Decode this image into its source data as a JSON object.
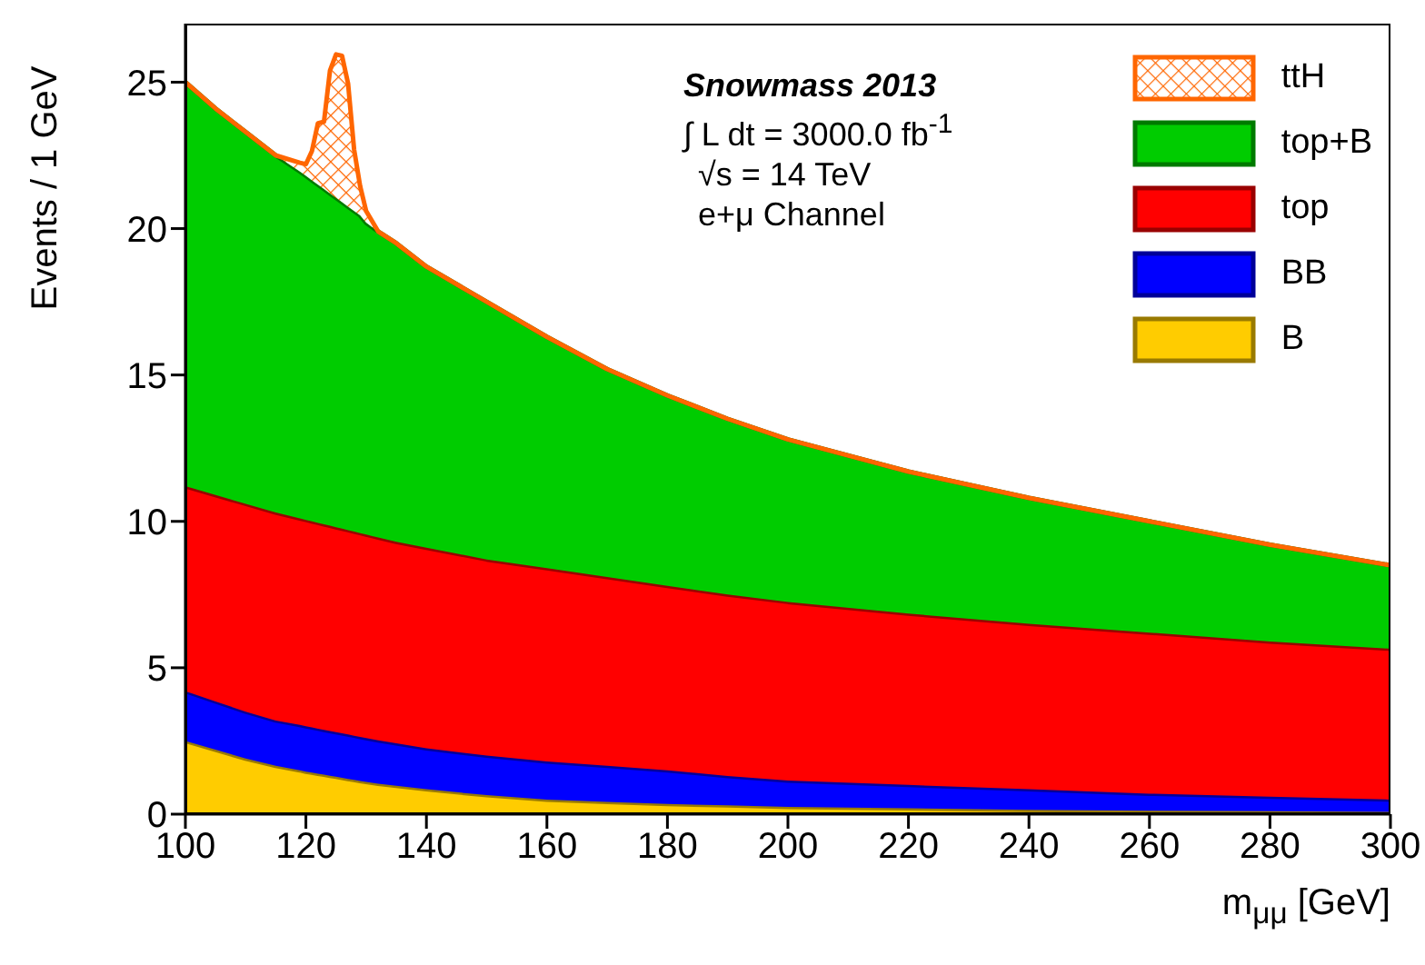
{
  "chart_data": {
    "type": "area",
    "stacked": true,
    "xlabel": "m$_{μμ}$ [GeV]",
    "ylabel": "Events / 1 GeV",
    "annotations": [
      "Snowmass 2013",
      "∫ L dt = 3000.0 fb$^{-1}$",
      "√s = 14 TeV",
      "e+μ Channel"
    ],
    "x": [
      100,
      105,
      110,
      115,
      119,
      120,
      121,
      122,
      123,
      124,
      125,
      126,
      127,
      128,
      129,
      130,
      131,
      132,
      135,
      140,
      150,
      160,
      170,
      180,
      190,
      200,
      220,
      240,
      260,
      280,
      300
    ],
    "series": [
      {
        "name": "B",
        "color": "#ffcc00",
        "values": [
          2.5,
          2.2,
          1.9,
          1.65,
          1.5,
          1.45,
          1.42,
          1.38,
          1.35,
          1.31,
          1.28,
          1.24,
          1.2,
          1.17,
          1.13,
          1.1,
          1.07,
          1.04,
          0.97,
          0.85,
          0.65,
          0.5,
          0.42,
          0.35,
          0.3,
          0.25,
          0.2,
          0.15,
          0.12,
          0.1,
          0.08
        ]
      },
      {
        "name": "BB",
        "color": "#0000ff",
        "values": [
          1.7,
          1.65,
          1.6,
          1.55,
          1.55,
          1.55,
          1.54,
          1.54,
          1.53,
          1.53,
          1.52,
          1.52,
          1.52,
          1.51,
          1.51,
          1.5,
          1.49,
          1.48,
          1.45,
          1.4,
          1.35,
          1.3,
          1.23,
          1.15,
          1.0,
          0.9,
          0.8,
          0.7,
          0.58,
          0.5,
          0.42
        ]
      },
      {
        "name": "top",
        "color": "#ff0000",
        "values": [
          7.0,
          7.05,
          7.1,
          7.1,
          7.05,
          7.05,
          7.04,
          7.03,
          7.02,
          7.01,
          7.0,
          6.99,
          6.98,
          6.97,
          6.96,
          6.95,
          6.94,
          6.93,
          6.88,
          6.85,
          6.7,
          6.6,
          6.45,
          6.3,
          6.2,
          6.1,
          5.85,
          5.65,
          5.5,
          5.3,
          5.15
        ]
      },
      {
        "name": "top+B",
        "color": "#00cc00",
        "values": [
          13.8,
          13.2,
          12.7,
          12.2,
          11.85,
          11.75,
          11.65,
          11.55,
          11.45,
          11.35,
          11.25,
          11.15,
          11.05,
          10.95,
          10.85,
          10.65,
          10.55,
          10.45,
          10.2,
          9.6,
          8.8,
          7.9,
          7.1,
          6.5,
          6.0,
          5.55,
          4.85,
          4.3,
          3.8,
          3.3,
          2.85
        ]
      },
      {
        "name": "ttH",
        "color": "#ff6600",
        "values": [
          0,
          0,
          0,
          0,
          0.3,
          0.4,
          1.0,
          2.1,
          2.3,
          4.2,
          4.9,
          5.0,
          4.2,
          2.1,
          1.0,
          0.4,
          0.2,
          0,
          0,
          0,
          0,
          0,
          0,
          0,
          0,
          0,
          0,
          0,
          0,
          0,
          0
        ]
      }
    ],
    "xlim": [
      100,
      300
    ],
    "xticks": [
      100,
      120,
      140,
      160,
      180,
      200,
      220,
      240,
      260,
      280,
      300
    ],
    "ylim": [
      0,
      27
    ],
    "yticks": [
      0,
      5,
      10,
      15,
      20,
      25
    ],
    "grid": false,
    "legend": "top right"
  }
}
